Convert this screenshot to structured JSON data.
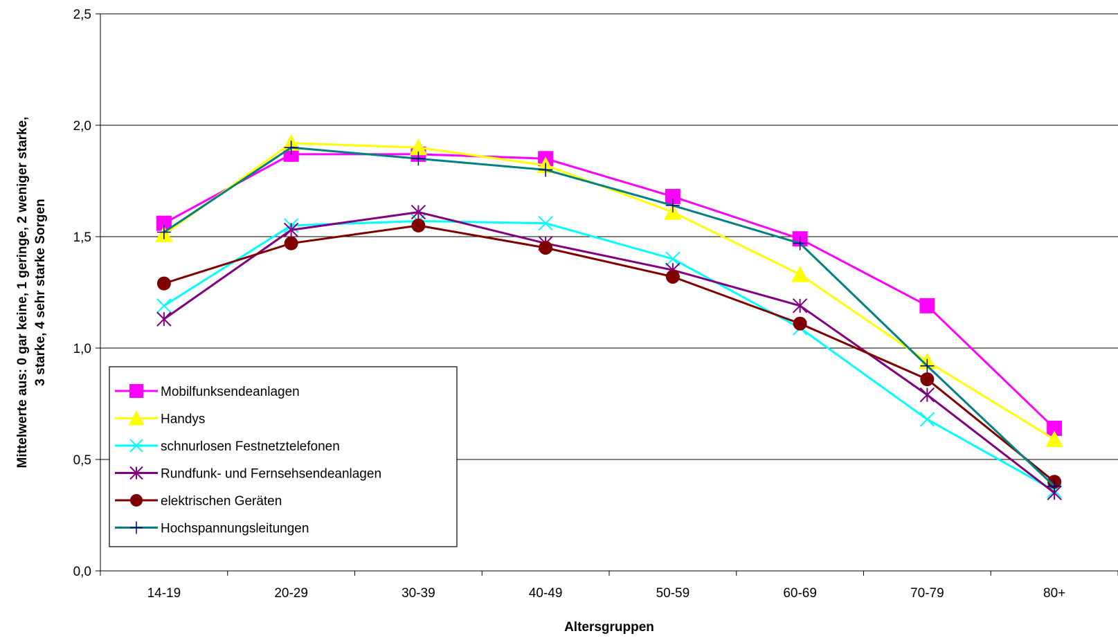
{
  "chart_data": {
    "type": "line",
    "title": "",
    "xlabel": "Altersgruppen",
    "ylabel_lines": [
      "Mittelwerte aus: 0 gar keine, 1 geringe, 2 weniger starke,",
      "3 starke, 4 sehr starke Sorgen"
    ],
    "ylim": [
      0,
      2.5
    ],
    "yticks": [
      "0,0",
      "0,5",
      "1,0",
      "1,5",
      "2,0",
      "2,5"
    ],
    "yticks_values": [
      0,
      0.5,
      1.0,
      1.5,
      2.0,
      2.5
    ],
    "grid": true,
    "legend_position": "bottom-left",
    "categories": [
      "14-19",
      "20-29",
      "30-39",
      "40-49",
      "50-59",
      "60-69",
      "70-79",
      "80+"
    ],
    "series": [
      {
        "name": "Mobilfunksendeanlagen",
        "color": "#FF00FF",
        "marker": "square",
        "values": [
          1.56,
          1.87,
          1.87,
          1.85,
          1.68,
          1.49,
          1.19,
          0.64
        ]
      },
      {
        "name": "Handys",
        "color": "#FFFF00",
        "marker": "triangle",
        "values": [
          1.51,
          1.92,
          1.9,
          1.82,
          1.61,
          1.33,
          0.94,
          0.59
        ]
      },
      {
        "name": "schnurlosen Festnetztelefonen",
        "color": "#00FFFF",
        "marker": "x",
        "values": [
          1.19,
          1.55,
          1.57,
          1.56,
          1.4,
          1.09,
          0.68,
          0.36
        ]
      },
      {
        "name": "Rundfunk- und Fernsehsendeanlagen",
        "color": "#800080",
        "marker": "star",
        "values": [
          1.13,
          1.53,
          1.61,
          1.47,
          1.35,
          1.19,
          0.79,
          0.35
        ]
      },
      {
        "name": "elektrischen Geräten",
        "color": "#800000",
        "marker": "circle",
        "values": [
          1.29,
          1.47,
          1.55,
          1.45,
          1.32,
          1.11,
          0.86,
          0.4
        ]
      },
      {
        "name": "Hochspannungsleitungen",
        "color": "#008080",
        "marker": "plus",
        "values": [
          1.52,
          1.9,
          1.85,
          1.8,
          1.64,
          1.47,
          0.92,
          0.38
        ]
      }
    ]
  }
}
